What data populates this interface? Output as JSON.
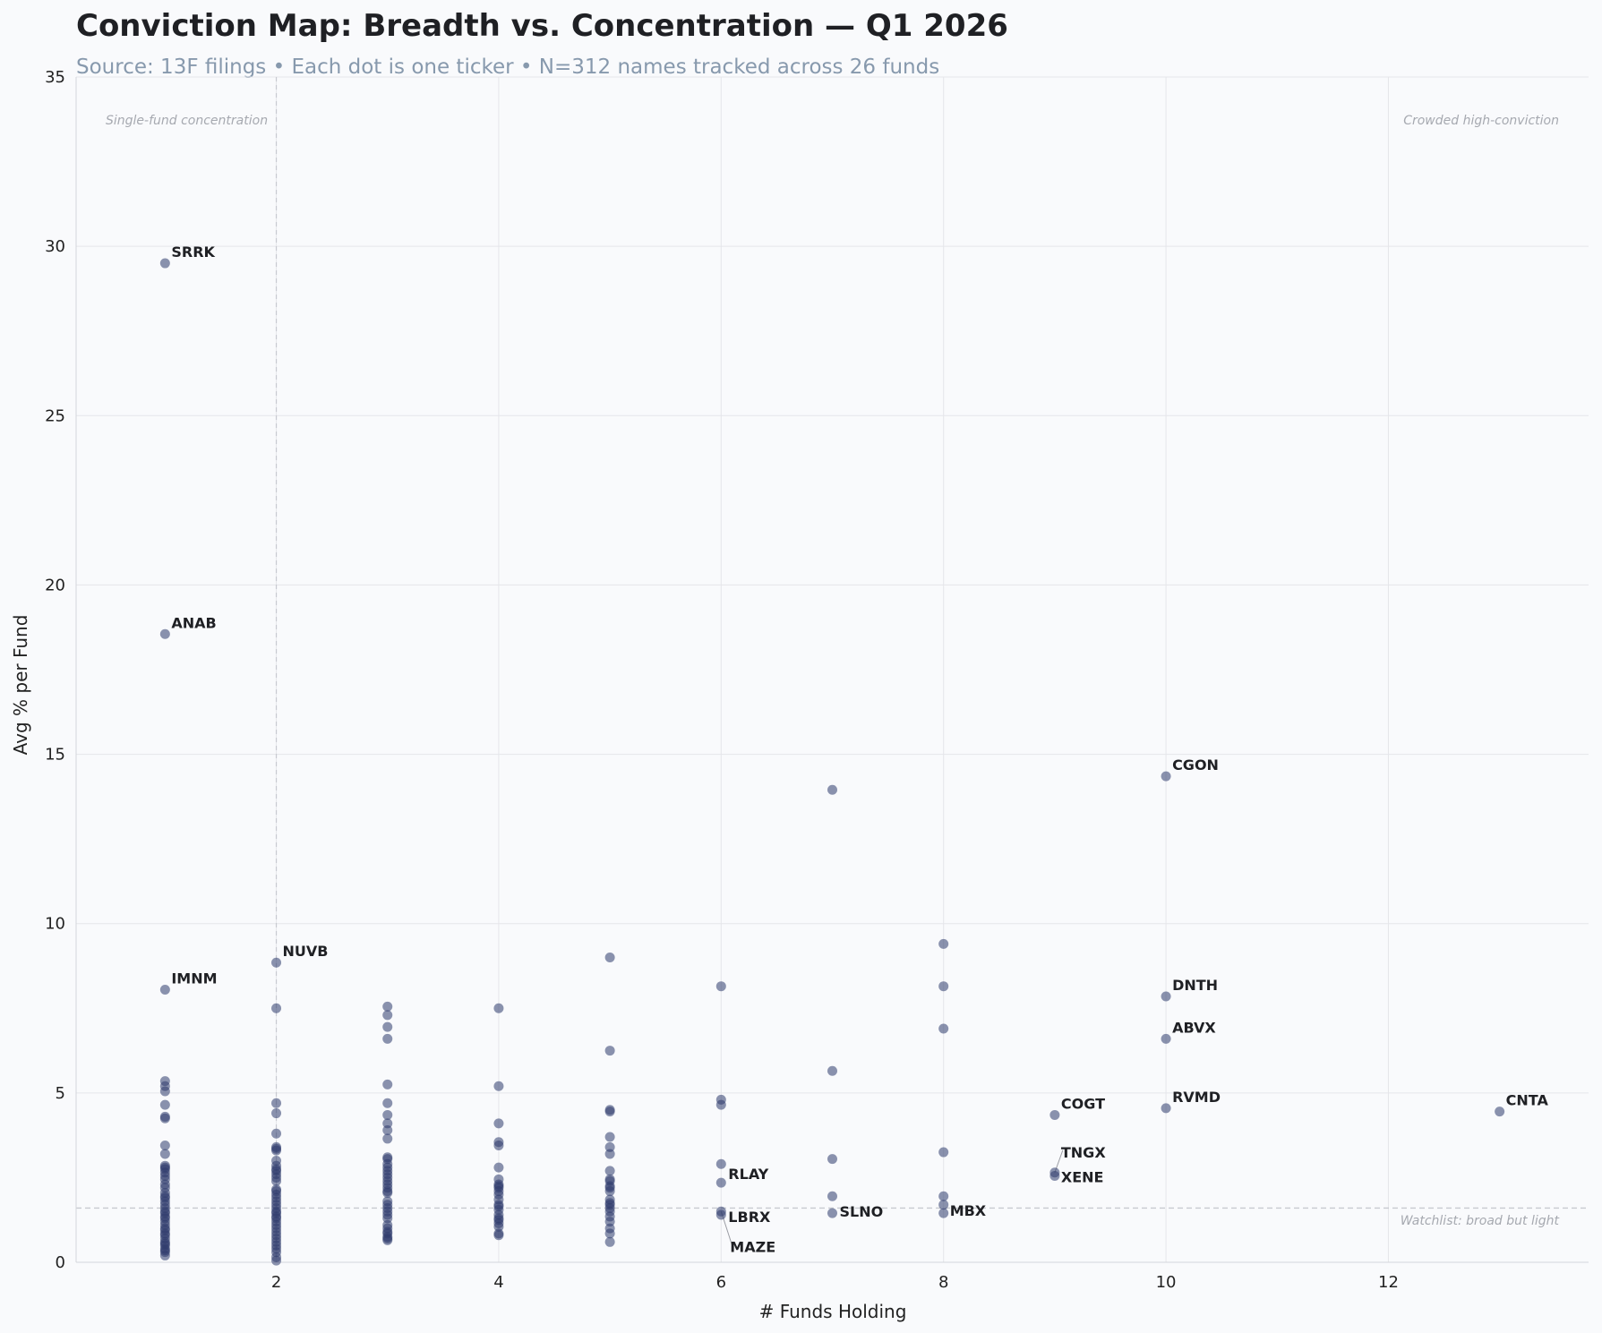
{
  "title": "Conviction Map: Breadth vs. Concentration — Q1 2026",
  "subtitle": "Source: 13F filings  •  Each dot is one ticker  •  N=312 names tracked across 26 funds",
  "annotations": {
    "top_left": "Single-fund concentration",
    "top_right": "Crowded high-conviction",
    "bottom_right": "Watchlist: broad but light"
  },
  "colors": {
    "point": "#2e3b6b",
    "grid": "#e5e6ea",
    "reference": "#c8cad0"
  },
  "chart_data": {
    "type": "scatter",
    "title": "Conviction Map: Breadth vs. Concentration — Q1 2026",
    "xlabel": "# Funds Holding",
    "ylabel": "Avg % per Fund",
    "xlim": [
      0.2,
      13.8
    ],
    "ylim": [
      0,
      35
    ],
    "xticks": [
      2,
      4,
      6,
      8,
      10,
      12
    ],
    "yticks": [
      0,
      5,
      10,
      15,
      20,
      25,
      30,
      35
    ],
    "grid": true,
    "reference_lines": {
      "x": 2,
      "y": 1.6
    },
    "labeled_points": [
      {
        "label": "SRRK",
        "x": 1,
        "y": 29.5
      },
      {
        "label": "ANAB",
        "x": 1,
        "y": 18.55
      },
      {
        "label": "IMNM",
        "x": 1,
        "y": 8.05
      },
      {
        "label": "NUVB",
        "x": 2,
        "y": 8.85
      },
      {
        "label": "CGON",
        "x": 10,
        "y": 14.35
      },
      {
        "label": "DNTH",
        "x": 10,
        "y": 7.85
      },
      {
        "label": "ABVX",
        "x": 10,
        "y": 6.6
      },
      {
        "label": "RVMD",
        "x": 10,
        "y": 4.55
      },
      {
        "label": "CNTA",
        "x": 13,
        "y": 4.45
      },
      {
        "label": "COGT",
        "x": 9,
        "y": 4.35
      },
      {
        "label": "TNGX",
        "x": 9,
        "y": 2.65
      },
      {
        "label": "XENE",
        "x": 9,
        "y": 2.55
      },
      {
        "label": "RLAY",
        "x": 6,
        "y": 2.35
      },
      {
        "label": "LBRX",
        "x": 6,
        "y": 1.4
      },
      {
        "label": "MAZE",
        "x": 6,
        "y": 1.5
      },
      {
        "label": "SLNO",
        "x": 7,
        "y": 1.45
      },
      {
        "label": "MBX",
        "x": 8,
        "y": 1.45
      }
    ],
    "points": [
      {
        "x": 1,
        "y": [
          5.35,
          5.2,
          5.05,
          4.65,
          4.3,
          4.25,
          3.45,
          3.2,
          2.85,
          2.8,
          2.75,
          2.65,
          2.55,
          2.45,
          2.3,
          2.2,
          2.05,
          1.95,
          1.9,
          1.8,
          1.7,
          1.6,
          1.5,
          1.45,
          1.35,
          1.3,
          1.2,
          1.1,
          1.0,
          0.95,
          0.85,
          0.8,
          0.7,
          0.6,
          0.55,
          0.5,
          0.4,
          0.35,
          0.3,
          0.2
        ]
      },
      {
        "x": 2,
        "y": [
          7.5,
          4.7,
          4.4,
          3.8,
          3.4,
          3.35,
          3.3,
          3.0,
          2.85,
          2.75,
          2.7,
          2.6,
          2.5,
          2.4,
          2.15,
          2.1,
          2.0,
          1.9,
          1.8,
          1.7,
          1.6,
          1.5,
          1.45,
          1.35,
          1.3,
          1.2,
          1.1,
          1.0,
          0.9,
          0.8,
          0.7,
          0.6,
          0.5,
          0.4,
          0.3,
          0.15,
          0.05
        ]
      },
      {
        "x": 3,
        "y": [
          7.55,
          7.3,
          6.95,
          6.6,
          5.25,
          4.7,
          4.35,
          4.1,
          3.9,
          3.65,
          3.1,
          3.05,
          2.9,
          2.8,
          2.7,
          2.6,
          2.5,
          2.4,
          2.3,
          2.2,
          2.1,
          2.05,
          1.8,
          1.7,
          1.6,
          1.5,
          1.4,
          1.3,
          1.1,
          1.0,
          0.9,
          0.85,
          0.75,
          0.7,
          0.65
        ]
      },
      {
        "x": 4,
        "y": [
          7.5,
          5.2,
          4.1,
          3.55,
          3.45,
          2.8,
          2.45,
          2.3,
          2.25,
          2.2,
          2.1,
          2.0,
          1.85,
          1.7,
          1.65,
          1.55,
          1.4,
          1.3,
          1.25,
          1.15,
          1.05,
          0.85,
          0.8
        ]
      },
      {
        "x": 5,
        "y": [
          9.0,
          6.25,
          4.5,
          4.45,
          3.7,
          3.4,
          3.2,
          2.7,
          2.45,
          2.4,
          2.25,
          2.2,
          2.1,
          1.85,
          1.75,
          1.7,
          1.6,
          1.5,
          1.35,
          1.2,
          1.0,
          0.85,
          0.6
        ]
      },
      {
        "x": 6,
        "y": [
          8.15,
          4.8,
          4.65,
          2.9
        ]
      },
      {
        "x": 7,
        "y": [
          13.95,
          5.65,
          3.05,
          1.95
        ]
      },
      {
        "x": 8,
        "y": [
          9.4,
          8.15,
          6.9,
          3.25,
          1.95,
          1.7
        ]
      }
    ]
  }
}
